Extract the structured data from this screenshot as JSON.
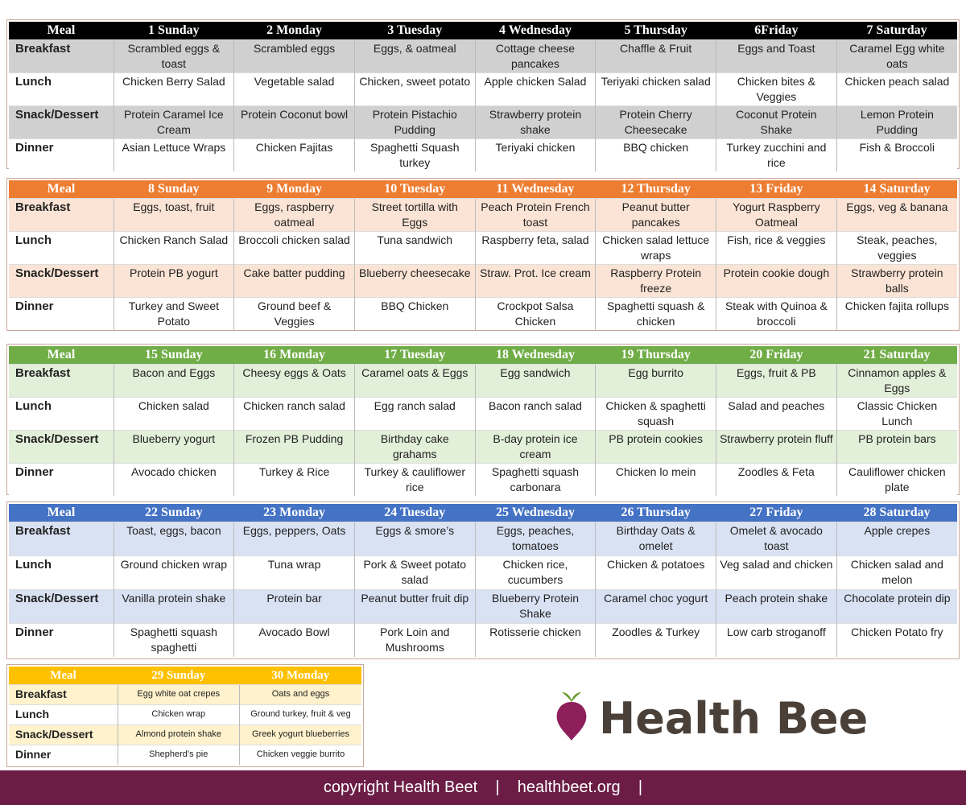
{
  "weeks": [
    {
      "color": "#000000",
      "tint": "#d0d0d0",
      "header": [
        "Meal",
        "1 Sunday",
        "2 Monday",
        "3 Tuesday",
        "4 Wednesday",
        "5 Thursday",
        "6Friday",
        "7 Saturday"
      ],
      "rows": [
        [
          "Breakfast",
          "Scrambled eggs & toast",
          "Scrambled eggs",
          "Eggs,  & oatmeal",
          "Cottage cheese pancakes",
          "Chaffle & Fruit",
          "Eggs and Toast",
          "Caramel Egg white oats"
        ],
        [
          "Lunch",
          "Chicken Berry Salad",
          "Vegetable salad",
          "Chicken, sweet potato",
          "Apple chicken Salad",
          "Teriyaki chicken salad",
          "Chicken bites & Veggies",
          "Chicken peach salad"
        ],
        [
          "Snack/Dessert",
          "Protein Caramel Ice Cream",
          "Protein Coconut bowl",
          "Protein Pistachio Pudding",
          "Strawberry protein shake",
          "Protein Cherry Cheesecake",
          "Coconut Protein Shake",
          "Lemon Protein Pudding"
        ],
        [
          "Dinner",
          "Asian Lettuce Wraps",
          "Chicken Fajitas",
          "Spaghetti Squash turkey",
          "Teriyaki chicken",
          "BBQ chicken",
          "Turkey zucchini and rice",
          "Fish & Broccoli"
        ]
      ]
    },
    {
      "color": "#ed7d31",
      "tint": "#fbe4d5",
      "header": [
        "Meal",
        "8 Sunday",
        "9 Monday",
        "10 Tuesday",
        "11 Wednesday",
        "12 Thursday",
        "13 Friday",
        "14 Saturday"
      ],
      "rows": [
        [
          "Breakfast",
          "Eggs, toast, fruit",
          "Eggs, raspberry oatmeal",
          "Street tortilla with Eggs",
          "Peach Protein French toast",
          "Peanut butter pancakes",
          "Yogurt Raspberry Oatmeal",
          "Eggs, veg & banana"
        ],
        [
          "Lunch",
          "Chicken Ranch Salad",
          "Broccoli chicken salad",
          "Tuna sandwich",
          "Raspberry feta, salad",
          "Chicken salad lettuce wraps",
          "Fish, rice & veggies",
          "Steak, peaches, veggies"
        ],
        [
          "Snack/Dessert",
          "Protein PB yogurt",
          "Cake batter pudding",
          "Blueberry cheesecake",
          "Straw. Prot. Ice cream",
          "Raspberry Protein freeze",
          "Protein cookie dough",
          "Strawberry protein balls"
        ],
        [
          "Dinner",
          "Turkey and Sweet Potato",
          "Ground beef & Veggies",
          "BBQ Chicken",
          "Crockpot Salsa Chicken",
          "Spaghetti squash & chicken",
          "Steak with Quinoa & broccoli",
          "Chicken fajita rollups"
        ]
      ]
    },
    {
      "color": "#70ad47",
      "tint": "#e2efd9",
      "header": [
        "Meal",
        "15 Sunday",
        "16 Monday",
        "17 Tuesday",
        "18 Wednesday",
        "19 Thursday",
        "20 Friday",
        "21 Saturday"
      ],
      "rows": [
        [
          "Breakfast",
          "Bacon and Eggs",
          "Cheesy eggs & Oats",
          "Caramel oats & Eggs",
          "Egg sandwich",
          "Egg burrito",
          "Eggs, fruit & PB",
          "Cinnamon apples & Eggs"
        ],
        [
          "Lunch",
          "Chicken salad",
          "Chicken ranch salad",
          "Egg ranch salad",
          "Bacon ranch salad",
          "Chicken & spaghetti squash",
          "Salad and peaches",
          "Classic Chicken Lunch"
        ],
        [
          "Snack/Dessert",
          "Blueberry yogurt",
          "Frozen PB Pudding",
          "Birthday cake grahams",
          "B-day protein ice cream",
          "PB protein cookies",
          "Strawberry protein fluff",
          "PB protein bars"
        ],
        [
          "Dinner",
          "Avocado chicken",
          "Turkey & Rice",
          "Turkey & cauliflower rice",
          "Spaghetti squash carbonara",
          "Chicken lo mein",
          "Zoodles & Feta",
          "Cauliflower chicken plate"
        ]
      ]
    },
    {
      "color": "#4472c4",
      "tint": "#d9e2f3",
      "header": [
        "Meal",
        "22 Sunday",
        "23 Monday",
        "24 Tuesday",
        "25 Wednesday",
        "26 Thursday",
        "27 Friday",
        "28 Saturday"
      ],
      "rows": [
        [
          "Breakfast",
          "Toast, eggs, bacon",
          "Eggs, peppers, Oats",
          "Eggs & smore’s",
          "Eggs, peaches, tomatoes",
          "Birthday Oats & omelet",
          "Omelet & avocado toast",
          "Apple crepes"
        ],
        [
          "Lunch",
          "Ground chicken wrap",
          "Tuna wrap",
          "Pork & Sweet potato salad",
          "Chicken rice, cucumbers",
          "Chicken & potatoes",
          "Veg salad and chicken",
          "Chicken salad and melon"
        ],
        [
          "Snack/Dessert",
          "Vanilla protein shake",
          "Protein bar",
          "Peanut butter fruit dip",
          "Blueberry Protein Shake",
          "Caramel choc yogurt",
          "Peach protein shake",
          "Chocolate protein dip"
        ],
        [
          "Dinner",
          "Spaghetti squash spaghetti",
          "Avocado Bowl",
          "Pork Loin and Mushrooms",
          "Rotisserie chicken",
          "Zoodles & Turkey",
          "Low carb stroganoff",
          "Chicken Potato fry"
        ]
      ]
    },
    {
      "color": "#ffc000",
      "tint": "#fff2cc",
      "header": [
        "Meal",
        "29 Sunday",
        "30 Monday"
      ],
      "rows": [
        [
          "Breakfast",
          "Egg white oat crepes",
          "Oats and eggs"
        ],
        [
          "Lunch",
          "Chicken wrap",
          "Ground turkey, fruit & veg"
        ],
        [
          "Snack/Dessert",
          "Almond protein shake",
          "Greek yogurt blueberries"
        ],
        [
          "Dinner",
          "Shepherd’s pie",
          "Chicken veggie burrito"
        ]
      ]
    }
  ],
  "logo": {
    "text": "Health Beet"
  },
  "footer": {
    "text": "copyright Health Beet    |    healthbeet.org    |"
  }
}
